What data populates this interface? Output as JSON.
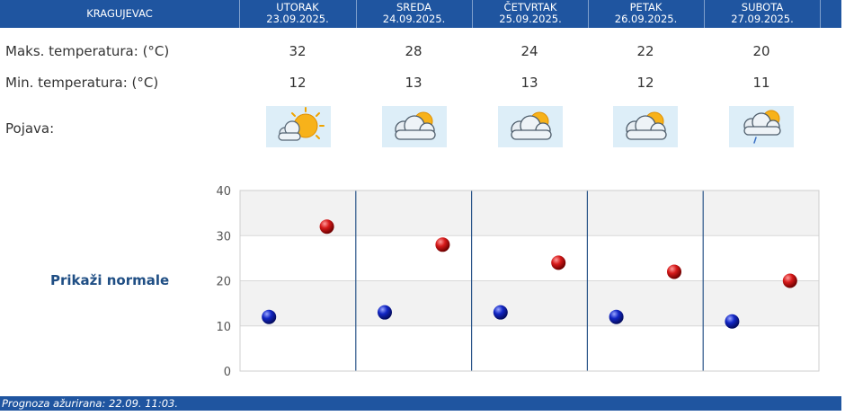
{
  "city": "KRAGUJEVAC",
  "days": [
    {
      "name": "UTORAK",
      "date": "23.09.2025.",
      "max": "32",
      "min": "12",
      "icon": "partly-sunny-icon"
    },
    {
      "name": "SREDA",
      "date": "24.09.2025.",
      "max": "28",
      "min": "13",
      "icon": "cloudy-sun-icon"
    },
    {
      "name": "ČETVRTAK",
      "date": "25.09.2025.",
      "max": "24",
      "min": "13",
      "icon": "cloudy-sun-icon"
    },
    {
      "name": "PETAK",
      "date": "26.09.2025.",
      "max": "22",
      "min": "12",
      "icon": "cloudy-sun-icon"
    },
    {
      "name": "SUBOTA",
      "date": "27.09.2025.",
      "max": "20",
      "min": "11",
      "icon": "cloudy-light-rain-icon"
    }
  ],
  "labels": {
    "max": "Maks. temperatura: (°C)",
    "min": "Min. temperatura: (°C)",
    "phenomenon": "Pojava:"
  },
  "normals_link": "Prikaži normale",
  "footer": "Prognoza ažurirana:  22.09. 11:03.",
  "colors": {
    "header": "#1f55a0",
    "max_marker": "#cc0000",
    "min_marker": "#0a1aa8",
    "link": "#1f4e84"
  },
  "chart_data": {
    "type": "scatter",
    "categories": [
      "UTORAK",
      "SREDA",
      "ČETVRTAK",
      "PETAK",
      "SUBOTA"
    ],
    "y_ticks": [
      "0",
      "10",
      "20",
      "30",
      "40"
    ],
    "ylim": [
      0,
      40
    ],
    "grid": true,
    "series": [
      {
        "color": "#0a1aa8",
        "values": [
          12,
          13,
          13,
          12,
          11
        ]
      },
      {
        "color": "#cc0000",
        "values": [
          32,
          28,
          24,
          22,
          20
        ]
      }
    ]
  }
}
